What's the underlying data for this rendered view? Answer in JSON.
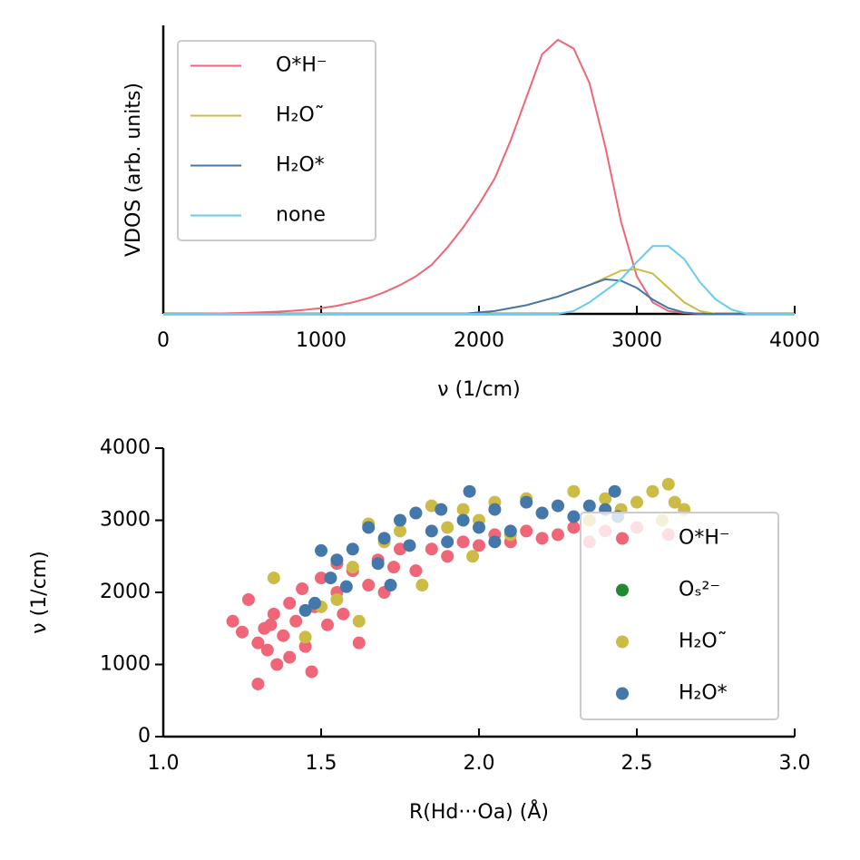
{
  "chart_data": [
    {
      "type": "line",
      "xlabel": "ν (1/cm)",
      "ylabel": "VDOS (arb. units)",
      "xlim": [
        0,
        4000
      ],
      "ylim": [
        0,
        1
      ],
      "xticks": [
        0,
        1000,
        2000,
        3000,
        4000
      ],
      "legend": "upper left",
      "x": [
        0,
        100,
        200,
        300,
        400,
        500,
        600,
        700,
        800,
        900,
        1000,
        1100,
        1200,
        1300,
        1400,
        1500,
        1600,
        1700,
        1800,
        1900,
        2000,
        2100,
        2200,
        2300,
        2400,
        2500,
        2600,
        2700,
        2800,
        2900,
        3000,
        3100,
        3200,
        3300,
        3400,
        3500,
        3600,
        3700,
        3800,
        3900,
        4000
      ],
      "series": [
        {
          "name": "O*H⁻",
          "color": "#EE6677",
          "values": [
            0,
            0,
            0,
            0.001,
            0.002,
            0.003,
            0.005,
            0.007,
            0.01,
            0.014,
            0.02,
            0.028,
            0.04,
            0.055,
            0.075,
            0.1,
            0.13,
            0.17,
            0.23,
            0.3,
            0.38,
            0.47,
            0.6,
            0.75,
            0.9,
            0.95,
            0.92,
            0.8,
            0.58,
            0.32,
            0.13,
            0.04,
            0.01,
            0.003,
            0,
            0,
            0,
            0,
            0,
            0,
            0
          ]
        },
        {
          "name": "H₂O˜",
          "color": "#CCBB44",
          "values": [
            0,
            0,
            0,
            0,
            0,
            0,
            0,
            0,
            0,
            0,
            0,
            0,
            0,
            0,
            0,
            0,
            0,
            0,
            0,
            0,
            0.005,
            0.01,
            0.02,
            0.03,
            0.045,
            0.06,
            0.08,
            0.1,
            0.125,
            0.15,
            0.155,
            0.14,
            0.09,
            0.04,
            0.01,
            0,
            0,
            0,
            0,
            0,
            0
          ]
        },
        {
          "name": "H₂O*",
          "color": "#4477AA",
          "values": [
            0,
            0,
            0,
            0,
            0,
            0,
            0,
            0,
            0,
            0,
            0,
            0,
            0,
            0,
            0,
            0,
            0,
            0,
            0,
            0,
            0.005,
            0.01,
            0.02,
            0.03,
            0.045,
            0.06,
            0.08,
            0.1,
            0.12,
            0.115,
            0.09,
            0.05,
            0.02,
            0.005,
            0,
            0,
            0,
            0,
            0,
            0,
            0
          ]
        },
        {
          "name": "none",
          "color": "#66CCEE",
          "values": [
            0,
            0,
            0,
            0,
            0,
            0,
            0,
            0,
            0,
            0,
            0,
            0,
            0,
            0,
            0,
            0,
            0,
            0,
            0,
            0,
            0,
            0,
            0,
            0,
            0,
            0,
            0.01,
            0.04,
            0.08,
            0.12,
            0.18,
            0.235,
            0.235,
            0.19,
            0.11,
            0.05,
            0.015,
            0,
            0,
            0,
            0
          ]
        }
      ]
    },
    {
      "type": "scatter",
      "xlabel": "R(Hd···Oa) (Å)",
      "ylabel": "ν (1/cm)",
      "xlim": [
        1,
        3
      ],
      "ylim": [
        0,
        4000
      ],
      "xticks": [
        {
          "value": 1,
          "label": "1.0"
        },
        1.5,
        {
          "value": 2,
          "label": "2.0"
        },
        2.5,
        {
          "value": 3,
          "label": "3.0"
        }
      ],
      "yticks": [
        0,
        1000,
        2000,
        3000,
        4000
      ],
      "legend": "lower right",
      "series": [
        {
          "name": "O*H⁻",
          "color": "#EE6677",
          "x": [
            1.22,
            1.25,
            1.27,
            1.3,
            1.3,
            1.32,
            1.33,
            1.35,
            1.36,
            1.38,
            1.4,
            1.4,
            1.42,
            1.44,
            1.45,
            1.47,
            1.48,
            1.5,
            1.52,
            1.55,
            1.57,
            1.6,
            1.62,
            1.65,
            1.68,
            1.7,
            1.73,
            1.75,
            1.8,
            1.85,
            1.9,
            1.95,
            2.0,
            2.05,
            2.1,
            2.15,
            2.2,
            2.25,
            2.3,
            2.35,
            2.4,
            2.5,
            2.6,
            1.55,
            1.34
          ],
          "y": [
            1600,
            1450,
            1900,
            1300,
            730,
            1500,
            1200,
            1700,
            1000,
            1400,
            1850,
            1100,
            1600,
            2050,
            1250,
            900,
            1800,
            2200,
            1550,
            2000,
            1700,
            2300,
            1300,
            2100,
            2450,
            2000,
            2350,
            2600,
            2300,
            2600,
            2500,
            2700,
            2650,
            2800,
            2700,
            2850,
            2750,
            2800,
            2900,
            2700,
            2850,
            2900,
            2800,
            2400,
            1550
          ]
        },
        {
          "name": "Oₛ²⁻",
          "color": "#228833",
          "x": [],
          "y": []
        },
        {
          "name": "H₂O˜",
          "color": "#CCBB44",
          "x": [
            1.45,
            1.5,
            1.55,
            1.6,
            1.62,
            1.65,
            1.7,
            1.75,
            1.8,
            1.82,
            1.85,
            1.9,
            1.95,
            2.0,
            2.05,
            2.1,
            2.15,
            2.2,
            2.25,
            2.3,
            2.35,
            2.4,
            2.45,
            2.5,
            2.55,
            2.6,
            2.62,
            2.65,
            2.58,
            1.98,
            1.35
          ],
          "y": [
            1380,
            1800,
            1900,
            2350,
            1600,
            2950,
            2700,
            2850,
            3100,
            2100,
            3200,
            2900,
            3150,
            3000,
            3250,
            2800,
            3300,
            3100,
            3200,
            3400,
            3000,
            3300,
            3150,
            3250,
            3400,
            3500,
            3250,
            3150,
            3000,
            2500,
            2200
          ]
        },
        {
          "name": "H₂O*",
          "color": "#4477AA",
          "x": [
            1.45,
            1.48,
            1.5,
            1.53,
            1.55,
            1.58,
            1.6,
            1.65,
            1.68,
            1.7,
            1.72,
            1.75,
            1.78,
            1.8,
            1.85,
            1.88,
            1.9,
            1.95,
            1.97,
            2.0,
            2.05,
            2.1,
            2.15,
            2.2,
            2.25,
            2.3,
            2.35,
            2.4,
            2.44,
            2.43,
            2.05
          ],
          "y": [
            1750,
            1850,
            2580,
            2200,
            2450,
            2080,
            2600,
            2900,
            2400,
            2750,
            2100,
            3000,
            2650,
            3100,
            2850,
            3150,
            2700,
            3000,
            3400,
            2900,
            3150,
            2850,
            3250,
            3100,
            3200,
            3050,
            3200,
            3150,
            3050,
            3400,
            2700
          ]
        }
      ]
    }
  ]
}
